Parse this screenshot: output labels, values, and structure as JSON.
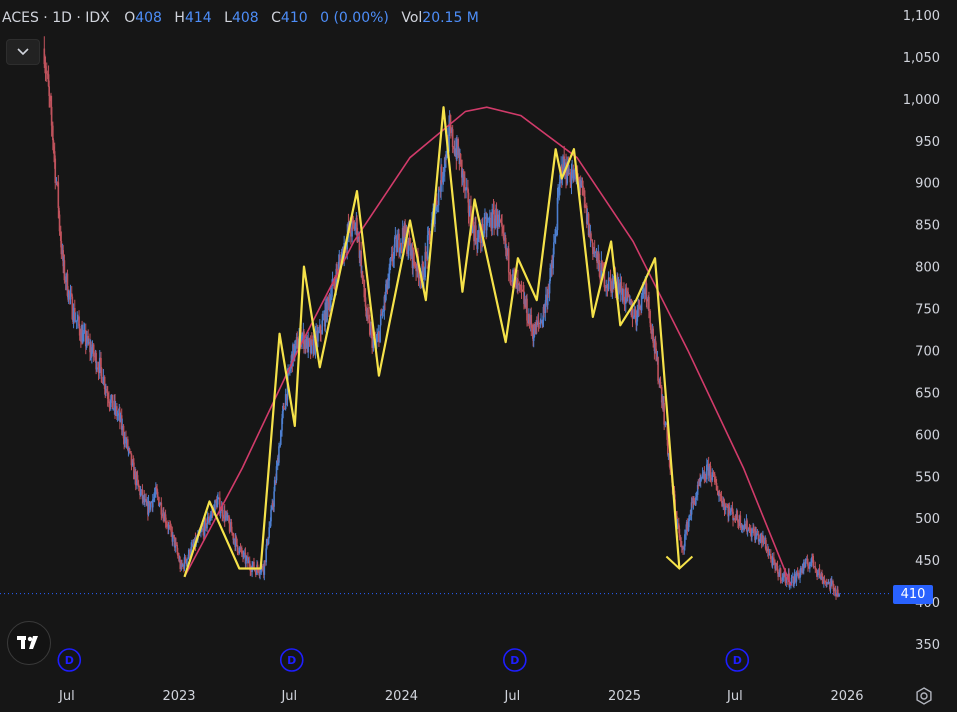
{
  "header": {
    "symbol": "ACES",
    "sep": "·",
    "interval": "1D",
    "exchange": "IDX",
    "open_label": "O",
    "open": "408",
    "high_label": "H",
    "high": "414",
    "low_label": "L",
    "low": "408",
    "close_label": "C",
    "close": "410",
    "change": "0 (0.00%)",
    "vol_label": "Vol",
    "vol": "20.15 M"
  },
  "icons": {
    "collapse": "chevron-down-icon",
    "logo": "tradingview-logo",
    "settings": "gear-icon",
    "dividend": "dividend-marker-icon",
    "down_arrow": "arrow-down-annotation"
  },
  "colors": {
    "background": "#161616",
    "candles_up": "#4d7fd0",
    "candles_down": "#c0535d",
    "zigzag": "#f5e24a",
    "arc": "#d13b6a",
    "price_line": "#2962ff",
    "axis_text": "#d1d4dc",
    "event_marker": "#1e1eff"
  },
  "chart_data": {
    "type": "candlestick",
    "symbol": "ACES",
    "interval": "1D",
    "y_axis_ticks": [
      "1,100",
      "1,050",
      "1,000",
      "950",
      "900",
      "850",
      "800",
      "750",
      "700",
      "650",
      "600",
      "550",
      "500",
      "450",
      "400",
      "350"
    ],
    "y_axis_values": [
      1100,
      1050,
      1000,
      950,
      900,
      850,
      800,
      750,
      700,
      650,
      600,
      550,
      500,
      450,
      400,
      350
    ],
    "ylim": [
      350,
      1120
    ],
    "x_axis_ticks": [
      "Jul",
      "2023",
      "Jul",
      "2024",
      "Jul",
      "2025",
      "Jul",
      "2026"
    ],
    "x_axis_dates": [
      "2022-07-01",
      "2023-01-01",
      "2023-07-01",
      "2024-01-01",
      "2024-07-01",
      "2025-01-01",
      "2025-07-01",
      "2026-01-01"
    ],
    "last_price": 410,
    "last_price_label": "410",
    "close_series": [
      [
        "2022-05-25",
        1060
      ],
      [
        "2022-06-10",
        940
      ],
      [
        "2022-06-25",
        800
      ],
      [
        "2022-07-10",
        750
      ],
      [
        "2022-07-25",
        720
      ],
      [
        "2022-08-10",
        700
      ],
      [
        "2022-08-25",
        680
      ],
      [
        "2022-09-10",
        640
      ],
      [
        "2022-09-25",
        620
      ],
      [
        "2022-10-10",
        580
      ],
      [
        "2022-10-25",
        540
      ],
      [
        "2022-11-10",
        510
      ],
      [
        "2022-11-25",
        530
      ],
      [
        "2022-12-10",
        500
      ],
      [
        "2022-12-25",
        470
      ],
      [
        "2023-01-05",
        440
      ],
      [
        "2023-01-20",
        460
      ],
      [
        "2023-02-05",
        480
      ],
      [
        "2023-02-20",
        500
      ],
      [
        "2023-03-05",
        520
      ],
      [
        "2023-03-20",
        500
      ],
      [
        "2023-04-05",
        470
      ],
      [
        "2023-04-20",
        450
      ],
      [
        "2023-05-05",
        440
      ],
      [
        "2023-05-20",
        440
      ],
      [
        "2023-06-05",
        520
      ],
      [
        "2023-06-20",
        620
      ],
      [
        "2023-07-05",
        690
      ],
      [
        "2023-07-20",
        720
      ],
      [
        "2023-08-05",
        700
      ],
      [
        "2023-08-20",
        720
      ],
      [
        "2023-09-05",
        760
      ],
      [
        "2023-09-20",
        800
      ],
      [
        "2023-10-05",
        840
      ],
      [
        "2023-10-20",
        850
      ],
      [
        "2023-11-05",
        740
      ],
      [
        "2023-11-20",
        700
      ],
      [
        "2023-12-05",
        760
      ],
      [
        "2023-12-20",
        820
      ],
      [
        "2024-01-05",
        840
      ],
      [
        "2024-01-20",
        810
      ],
      [
        "2024-02-05",
        790
      ],
      [
        "2024-02-20",
        850
      ],
      [
        "2024-03-05",
        900
      ],
      [
        "2024-03-20",
        960
      ],
      [
        "2024-04-05",
        930
      ],
      [
        "2024-04-20",
        870
      ],
      [
        "2024-05-05",
        830
      ],
      [
        "2024-05-20",
        850
      ],
      [
        "2024-06-05",
        860
      ],
      [
        "2024-06-20",
        820
      ],
      [
        "2024-07-05",
        780
      ],
      [
        "2024-07-20",
        760
      ],
      [
        "2024-08-05",
        720
      ],
      [
        "2024-08-20",
        740
      ],
      [
        "2024-09-05",
        800
      ],
      [
        "2024-09-20",
        920
      ],
      [
        "2024-10-05",
        910
      ],
      [
        "2024-10-20",
        900
      ],
      [
        "2024-11-05",
        840
      ],
      [
        "2024-11-20",
        800
      ],
      [
        "2024-12-05",
        780
      ],
      [
        "2024-12-20",
        780
      ],
      [
        "2025-01-05",
        760
      ],
      [
        "2025-01-20",
        740
      ],
      [
        "2025-02-05",
        780
      ],
      [
        "2025-02-20",
        700
      ],
      [
        "2025-03-05",
        640
      ],
      [
        "2025-03-20",
        540
      ],
      [
        "2025-04-05",
        460
      ],
      [
        "2025-04-20",
        510
      ],
      [
        "2025-05-05",
        540
      ],
      [
        "2025-05-20",
        560
      ],
      [
        "2025-06-05",
        530
      ],
      [
        "2025-06-20",
        510
      ],
      [
        "2025-07-05",
        500
      ],
      [
        "2025-07-20",
        490
      ],
      [
        "2025-08-05",
        480
      ],
      [
        "2025-08-20",
        470
      ],
      [
        "2025-09-05",
        440
      ],
      [
        "2025-09-20",
        430
      ],
      [
        "2025-10-05",
        425
      ],
      [
        "2025-10-20",
        440
      ],
      [
        "2025-11-05",
        450
      ],
      [
        "2025-11-20",
        430
      ],
      [
        "2025-12-05",
        420
      ],
      [
        "2025-12-20",
        410
      ]
    ],
    "zigzag_points": [
      [
        "2023-01-10",
        430
      ],
      [
        "2023-02-20",
        520
      ],
      [
        "2023-04-10",
        440
      ],
      [
        "2023-05-15",
        440
      ],
      [
        "2023-06-15",
        720
      ],
      [
        "2023-07-10",
        610
      ],
      [
        "2023-07-25",
        800
      ],
      [
        "2023-08-20",
        680
      ],
      [
        "2023-10-20",
        890
      ],
      [
        "2023-11-25",
        670
      ],
      [
        "2024-01-15",
        855
      ],
      [
        "2024-02-10",
        760
      ],
      [
        "2024-03-10",
        990
      ],
      [
        "2024-04-10",
        770
      ],
      [
        "2024-04-30",
        880
      ],
      [
        "2024-06-20",
        710
      ],
      [
        "2024-07-10",
        810
      ],
      [
        "2024-08-10",
        760
      ],
      [
        "2024-09-10",
        940
      ],
      [
        "2024-09-20",
        905
      ],
      [
        "2024-10-10",
        940
      ],
      [
        "2024-11-10",
        740
      ],
      [
        "2024-12-10",
        830
      ],
      [
        "2024-12-25",
        730
      ],
      [
        "2025-01-20",
        760
      ],
      [
        "2025-02-20",
        810
      ],
      [
        "2025-04-01",
        440
      ]
    ],
    "arc_points": [
      [
        "2023-01-10",
        430
      ],
      [
        "2023-04-15",
        560
      ],
      [
        "2023-07-15",
        700
      ],
      [
        "2023-10-15",
        830
      ],
      [
        "2024-01-15",
        930
      ],
      [
        "2024-04-15",
        985
      ],
      [
        "2024-05-20",
        990
      ],
      [
        "2024-07-15",
        980
      ],
      [
        "2024-10-15",
        930
      ],
      [
        "2025-01-15",
        830
      ],
      [
        "2025-04-15",
        700
      ],
      [
        "2025-07-15",
        560
      ],
      [
        "2025-10-01",
        420
      ]
    ],
    "down_arrow_point": [
      "2025-04-01",
      440
    ],
    "event_markers": [
      {
        "date": "2022-07-05",
        "label": "D"
      },
      {
        "date": "2023-07-05",
        "label": "D"
      },
      {
        "date": "2024-07-05",
        "label": "D"
      },
      {
        "date": "2025-07-05",
        "label": "D"
      }
    ]
  }
}
